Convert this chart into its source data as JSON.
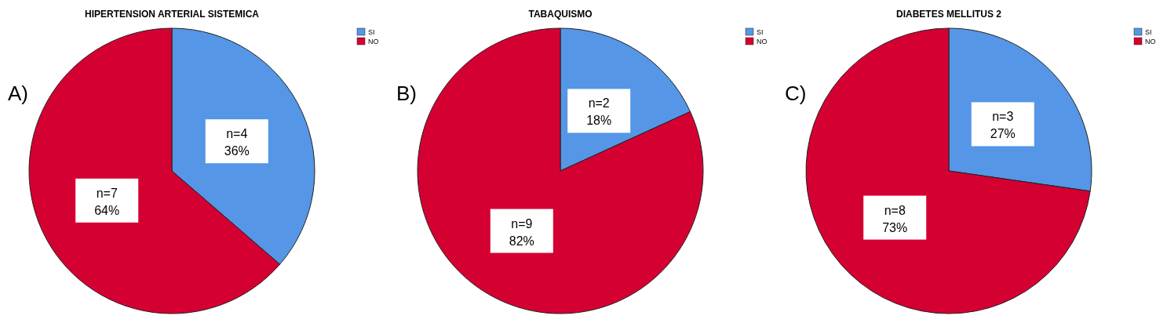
{
  "chart_data": [
    {
      "type": "pie",
      "title": "HIPERTENSION ARTERIAL SISTEMICA",
      "categories": [
        "SI",
        "NO"
      ],
      "values": [
        4,
        7
      ],
      "colors": [
        "#5596e6",
        "#d50032"
      ],
      "value_labels": [
        "n=4\n36%",
        "n=7\n64%"
      ],
      "legend": "top right",
      "annotations": [
        "A)"
      ]
    },
    {
      "type": "pie",
      "title": "TABAQUISMO",
      "categories": [
        "SI",
        "NO"
      ],
      "values": [
        2,
        9
      ],
      "colors": [
        "#5596e6",
        "#d50032"
      ],
      "value_labels": [
        "n=2\n18%",
        "n=9\n82%"
      ],
      "legend": "top right",
      "annotations": [
        "B)"
      ]
    },
    {
      "type": "pie",
      "title": "DIABETES MELLITUS 2",
      "categories": [
        "SI",
        "NO"
      ],
      "values": [
        3,
        8
      ],
      "colors": [
        "#5596e6",
        "#d50032"
      ],
      "value_labels": [
        "n=3\n27%",
        "n=8\n73%"
      ],
      "legend": "top right",
      "annotations": [
        "C)"
      ]
    }
  ]
}
